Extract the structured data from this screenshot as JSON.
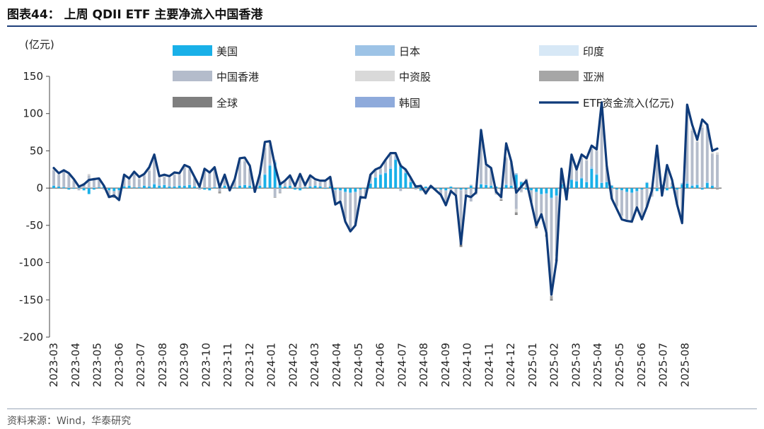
{
  "header": {
    "title": "图表44： 上周 QDII ETF 主要净流入中国香港"
  },
  "footer": {
    "source": "资料来源：Wind，华泰研究"
  },
  "colors": {
    "us": "#19b0e8",
    "japan": "#9dc3e6",
    "india": "#d7e8f6",
    "hk": "#b4bccb",
    "china": "#d9d9d9",
    "asia": "#a6a6a6",
    "global": "#7f7f7f",
    "korea": "#8eaadb",
    "line": "#0f3b7a",
    "axis": "#444444",
    "title_rule": "#1f3f7a"
  },
  "chart_data": {
    "type": "bar",
    "title": "上周 QDII ETF 主要净流入中国香港",
    "ylabel": "(亿元)",
    "ylim": [
      -200,
      150
    ],
    "yticks": [
      "150",
      "100",
      "50",
      "0",
      "-50",
      "-100",
      "-150",
      "-200"
    ],
    "ytick_values": [
      150,
      100,
      50,
      0,
      -50,
      -100,
      -150,
      -200
    ],
    "xticks": [
      "2023-03",
      "2023-04",
      "2023-05",
      "2023-06",
      "2023-07",
      "2023-08",
      "2023-09",
      "2023-10",
      "2023-11",
      "2023-12",
      "2024-01",
      "2024-02",
      "2024-03",
      "2024-04",
      "2024-05",
      "2024-06",
      "2024-07",
      "2024-08",
      "2024-09",
      "2024-10",
      "2024-11",
      "2024-12",
      "2025-01",
      "2025-02",
      "2025-03",
      "2025-04",
      "2025-05",
      "2025-06",
      "2025-07",
      "2025-08"
    ],
    "legend": [
      {
        "key": "us",
        "label": "美国",
        "kind": "bar"
      },
      {
        "key": "japan",
        "label": "日本",
        "kind": "bar"
      },
      {
        "key": "india",
        "label": "印度",
        "kind": "bar"
      },
      {
        "key": "hk",
        "label": "中国香港",
        "kind": "bar"
      },
      {
        "key": "china",
        "label": "中资股",
        "kind": "bar"
      },
      {
        "key": "asia",
        "label": "亚洲",
        "kind": "bar"
      },
      {
        "key": "global",
        "label": "全球",
        "kind": "bar"
      },
      {
        "key": "korea",
        "label": "韩国",
        "kind": "bar"
      },
      {
        "key": "line",
        "label": "ETF资金流入(亿元)",
        "kind": "line"
      }
    ],
    "weeks_per_month": 4.33,
    "series": [
      {
        "name": "ETF资金流入(亿元)",
        "key": "line",
        "values": [
          27,
          20,
          24,
          20,
          12,
          2,
          5,
          11,
          12,
          13,
          3,
          -12,
          -10,
          -16,
          18,
          13,
          22,
          15,
          19,
          28,
          45,
          16,
          18,
          16,
          21,
          20,
          31,
          28,
          15,
          2,
          26,
          21,
          28,
          1,
          18,
          -3,
          12,
          40,
          41,
          30,
          -5,
          19,
          62,
          63,
          30,
          5,
          10,
          17,
          3,
          19,
          4,
          17,
          12,
          10,
          10,
          15,
          -22,
          -18,
          -45,
          -58,
          -50,
          -12,
          -13,
          18,
          25,
          28,
          38,
          47,
          47,
          30,
          25,
          14,
          2,
          3,
          -7,
          3,
          -3,
          -9,
          -23,
          -4,
          -10,
          -75,
          -10,
          -12,
          -6,
          78,
          32,
          27,
          -5,
          -12,
          60,
          36,
          -6,
          2,
          10,
          -20,
          -50,
          -35,
          -60,
          -143,
          -98,
          26,
          -15,
          45,
          25,
          45,
          40,
          57,
          52,
          115,
          30,
          -14,
          -28,
          -42,
          -44,
          -45,
          -26,
          -42,
          -25,
          -3,
          57,
          -10,
          31,
          11,
          -22,
          -47,
          112,
          85,
          65,
          92,
          85,
          50,
          53
        ]
      },
      {
        "name": "美国",
        "key": "us",
        "values": [
          3,
          2,
          1,
          -2,
          -1,
          1,
          -3,
          -8,
          -2,
          1,
          2,
          -3,
          -4,
          -3,
          2,
          3,
          1,
          1,
          3,
          2,
          5,
          3,
          4,
          2,
          2,
          3,
          3,
          4,
          2,
          1,
          -2,
          -3,
          1,
          2,
          3,
          -2,
          1,
          3,
          4,
          3,
          2,
          3,
          18,
          30,
          34,
          8,
          2,
          3,
          -2,
          -3,
          1,
          2,
          3,
          2,
          -1,
          2,
          -2,
          -3,
          -5,
          -6,
          -5,
          -2,
          -1,
          6,
          14,
          18,
          20,
          26,
          38,
          29,
          20,
          8,
          4,
          -3,
          2,
          1,
          -1,
          -2,
          -3,
          2,
          -1,
          -2,
          -2,
          3,
          -3,
          5,
          4,
          3,
          2,
          -2,
          4,
          3,
          18,
          8,
          -2,
          -3,
          -5,
          -8,
          -7,
          -13,
          -10,
          5,
          -6,
          11,
          9,
          13,
          8,
          26,
          18,
          7,
          8,
          3,
          -2,
          -3,
          -5,
          -6,
          -4,
          -2,
          7,
          -3,
          -4,
          4,
          -3,
          2,
          -2,
          5,
          6,
          3,
          4,
          -2,
          7,
          3
        ]
      },
      {
        "name": "日本",
        "key": "japan",
        "values": [
          1,
          0,
          1,
          0,
          0,
          0,
          0,
          0,
          1,
          0,
          0,
          0,
          0,
          0,
          1,
          1,
          0,
          1,
          1,
          1,
          2,
          1,
          1,
          1,
          1,
          1,
          1,
          1,
          1,
          0,
          0,
          0,
          1,
          0,
          1,
          0,
          0,
          1,
          1,
          1,
          0,
          1,
          2,
          3,
          2,
          1,
          0,
          1,
          0,
          0,
          0,
          1,
          1,
          1,
          0,
          0,
          -1,
          -1,
          -1,
          -1,
          -1,
          0,
          0,
          1,
          1,
          2,
          2,
          3,
          4,
          3,
          2,
          1,
          0,
          0,
          0,
          0,
          0,
          0,
          -1,
          0,
          0,
          -1,
          0,
          1,
          0,
          1,
          1,
          1,
          0,
          0,
          2,
          1,
          2,
          1,
          0,
          0,
          -1,
          -1,
          -1,
          -2,
          -1,
          1,
          0,
          1,
          1,
          2,
          1,
          3,
          2,
          1,
          1,
          1,
          0,
          0,
          -1,
          -1,
          -1,
          0,
          1,
          0,
          0,
          1,
          0,
          0,
          0,
          2,
          3,
          2,
          2,
          1,
          2,
          1
        ]
      },
      {
        "name": "中国香港",
        "key": "hk",
        "values": [
          20,
          16,
          20,
          18,
          10,
          -3,
          6,
          17,
          12,
          11,
          -2,
          -8,
          -7,
          -12,
          12,
          8,
          18,
          10,
          13,
          20,
          32,
          9,
          10,
          11,
          15,
          14,
          24,
          20,
          10,
          -2,
          24,
          20,
          22,
          -4,
          12,
          -2,
          9,
          32,
          31,
          22,
          -6,
          12,
          34,
          25,
          -12,
          -6,
          6,
          10,
          3,
          18,
          2,
          11,
          6,
          5,
          9,
          12,
          -17,
          -12,
          -35,
          -48,
          -42,
          -9,
          -11,
          9,
          8,
          6,
          14,
          16,
          2,
          -4,
          2,
          4,
          -2,
          4,
          -8,
          1,
          -1,
          -6,
          -18,
          -5,
          -8,
          -70,
          -9,
          -18,
          -5,
          68,
          25,
          22,
          -8,
          -12,
          34,
          30,
          -28,
          -5,
          12,
          -15,
          -42,
          -24,
          -50,
          -125,
          -80,
          18,
          -10,
          28,
          14,
          26,
          28,
          24,
          30,
          95,
          18,
          -14,
          -22,
          -34,
          -36,
          -37,
          -20,
          -36,
          -24,
          -8,
          48,
          -5,
          24,
          5,
          -18,
          -42,
          98,
          72,
          56,
          80,
          74,
          42,
          45
        ]
      },
      {
        "name": "中资股",
        "key": "china",
        "values": [
          2,
          1,
          2,
          2,
          1,
          1,
          1,
          2,
          1,
          1,
          1,
          -1,
          0,
          -1,
          2,
          1,
          2,
          2,
          1,
          3,
          4,
          2,
          2,
          1,
          2,
          1,
          2,
          2,
          1,
          1,
          2,
          2,
          2,
          1,
          1,
          0,
          1,
          3,
          3,
          2,
          0,
          2,
          6,
          4,
          2,
          2,
          1,
          2,
          1,
          1,
          1,
          2,
          1,
          1,
          1,
          1,
          -1,
          -1,
          -2,
          -2,
          -2,
          -1,
          -1,
          2,
          1,
          1,
          1,
          2,
          2,
          1,
          1,
          1,
          1,
          0,
          -1,
          0,
          0,
          -1,
          -1,
          0,
          -1,
          -1,
          0,
          1,
          -1,
          3,
          2,
          1,
          -1,
          -1,
          2,
          2,
          -4,
          -1,
          1,
          -1,
          -3,
          -3,
          -4,
          -5,
          -4,
          2,
          -1,
          3,
          2,
          3,
          3,
          4,
          3,
          6,
          3,
          -1,
          -2,
          -3,
          -3,
          -3,
          -2,
          -3,
          -1,
          -1,
          2,
          -1,
          2,
          1,
          -2,
          -3,
          4,
          3,
          3,
          4,
          3,
          2,
          3
        ]
      },
      {
        "name": "亚洲",
        "key": "asia",
        "values": [
          0,
          0,
          0,
          0,
          0,
          0,
          0,
          0,
          0,
          0,
          0,
          -1,
          -1,
          0,
          0,
          0,
          0,
          0,
          0,
          0,
          0,
          0,
          0,
          0,
          0,
          0,
          0,
          0,
          0,
          0,
          0,
          0,
          0,
          -2,
          0,
          0,
          0,
          0,
          0,
          0,
          0,
          0,
          0,
          0,
          -1,
          -1,
          0,
          0,
          0,
          0,
          0,
          0,
          0,
          0,
          0,
          0,
          0,
          0,
          0,
          0,
          0,
          0,
          0,
          0,
          0,
          0,
          0,
          0,
          0,
          0,
          0,
          0,
          0,
          -1,
          0,
          0,
          0,
          0,
          0,
          0,
          0,
          -2,
          0,
          0,
          0,
          0,
          0,
          0,
          0,
          -1,
          0,
          0,
          -2,
          0,
          0,
          0,
          -2,
          0,
          -2,
          -4,
          -2,
          0,
          0,
          0,
          0,
          0,
          0,
          0,
          0,
          0,
          0,
          0,
          0,
          0,
          0,
          0,
          0,
          0,
          0,
          0,
          0,
          0,
          0,
          0,
          0,
          0,
          0,
          0,
          0,
          0,
          0,
          0,
          -2
        ]
      },
      {
        "name": "全球",
        "key": "global",
        "values": [
          0,
          0,
          0,
          0,
          0,
          0,
          0,
          0,
          0,
          0,
          0,
          0,
          -1,
          0,
          0,
          0,
          0,
          0,
          0,
          0,
          0,
          0,
          0,
          0,
          0,
          0,
          0,
          0,
          0,
          0,
          0,
          0,
          0,
          -1,
          0,
          0,
          0,
          0,
          0,
          0,
          0,
          0,
          0,
          0,
          0,
          0,
          0,
          0,
          0,
          0,
          0,
          0,
          0,
          0,
          0,
          0,
          0,
          0,
          0,
          0,
          0,
          0,
          0,
          0,
          0,
          0,
          0,
          0,
          0,
          0,
          0,
          0,
          0,
          0,
          0,
          0,
          0,
          0,
          0,
          0,
          0,
          -3,
          0,
          0,
          0,
          0,
          0,
          0,
          0,
          -1,
          0,
          0,
          -2,
          0,
          0,
          0,
          -1,
          0,
          -1,
          -2,
          -1,
          0,
          0,
          0,
          0,
          0,
          0,
          0,
          0,
          0,
          0,
          0,
          0,
          0,
          0,
          0,
          0,
          0,
          0,
          0,
          0,
          0,
          0,
          0,
          0,
          0,
          0,
          0,
          0,
          0,
          0,
          -1
        ]
      },
      {
        "name": "印度",
        "key": "india",
        "values": [
          0,
          0,
          0,
          0,
          0,
          0,
          0,
          0,
          0,
          0,
          0,
          0,
          0,
          0,
          0,
          0,
          0,
          0,
          0,
          0,
          0,
          0,
          0,
          0,
          0,
          0,
          0,
          0,
          0,
          0,
          0,
          0,
          0,
          0,
          0,
          0,
          0,
          0,
          0,
          0,
          0,
          0,
          0,
          0,
          0,
          0,
          0,
          0,
          0,
          0,
          0,
          0,
          0,
          0,
          0,
          0,
          0,
          0,
          0,
          0,
          0,
          0,
          0,
          0,
          0,
          0,
          0,
          0,
          0,
          0,
          0,
          0,
          0,
          0,
          0,
          0,
          0,
          0,
          0,
          0,
          0,
          0,
          0,
          0,
          0,
          0,
          0,
          0,
          0,
          0,
          0,
          0,
          0,
          0,
          0,
          0,
          0,
          0,
          0,
          0,
          0,
          0,
          0,
          0,
          0,
          0,
          0,
          0,
          0,
          0,
          0,
          0,
          0,
          0,
          0,
          0,
          0,
          0,
          0,
          0,
          0,
          0,
          0,
          0,
          0,
          0,
          0,
          0,
          0,
          0,
          0,
          0
        ]
      },
      {
        "name": "韩国",
        "key": "korea",
        "values": [
          0,
          0,
          0,
          0,
          0,
          0,
          0,
          0,
          0,
          0,
          0,
          0,
          0,
          0,
          0,
          0,
          0,
          0,
          0,
          0,
          0,
          0,
          0,
          0,
          0,
          0,
          0,
          0,
          0,
          0,
          0,
          0,
          0,
          0,
          0,
          0,
          0,
          0,
          0,
          0,
          0,
          0,
          0,
          0,
          0,
          0,
          0,
          0,
          0,
          0,
          0,
          0,
          0,
          0,
          0,
          0,
          0,
          0,
          0,
          0,
          0,
          0,
          0,
          0,
          0,
          0,
          0,
          0,
          0,
          0,
          0,
          0,
          0,
          0,
          0,
          0,
          0,
          0,
          0,
          0,
          0,
          0,
          0,
          0,
          0,
          0,
          0,
          0,
          0,
          0,
          0,
          0,
          0,
          0,
          0,
          0,
          0,
          0,
          0,
          0,
          0,
          0,
          0,
          0,
          0,
          0,
          0,
          0,
          0,
          0,
          0,
          0,
          0,
          0,
          0,
          0,
          0,
          0,
          0,
          0,
          0,
          0,
          0,
          0,
          0,
          0,
          0,
          0,
          0,
          0,
          0,
          0
        ]
      }
    ]
  }
}
